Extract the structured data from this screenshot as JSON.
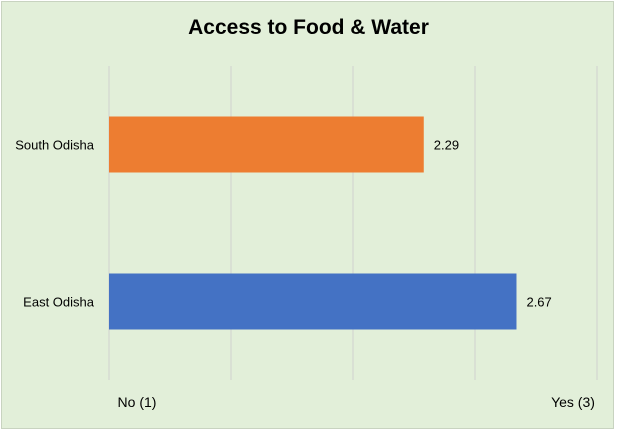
{
  "chart_data": {
    "type": "bar",
    "orientation": "horizontal",
    "title": "Access to Food & Water",
    "categories": [
      "South Odisha",
      "East Odisha"
    ],
    "values": [
      2.29,
      2.67
    ],
    "data_labels": [
      "2.29",
      "2.67"
    ],
    "colors": [
      "#ed7d31",
      "#4472c4"
    ],
    "xlim": [
      1,
      3
    ],
    "x_axis_labels": {
      "min": "No (1)",
      "max": "Yes (3)"
    },
    "grid": "vertical",
    "grid_lines": 5,
    "background": "#e2efd9"
  }
}
